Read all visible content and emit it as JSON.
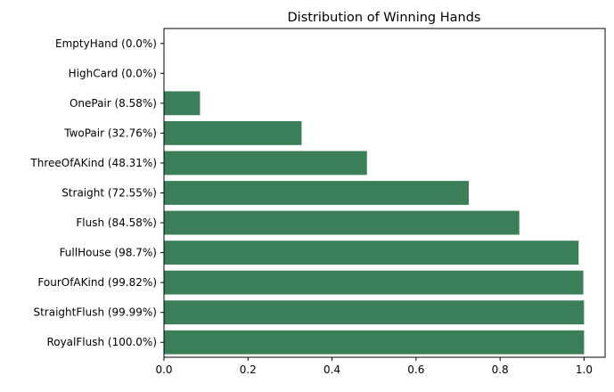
{
  "chart_data": {
    "type": "bar",
    "orientation": "horizontal",
    "title": "Distribution of Winning Hands",
    "xlabel": "",
    "ylabel": "",
    "categories": [
      "EmptyHand (0.0%)",
      "HighCard (0.0%)",
      "OnePair (8.58%)",
      "TwoPair (32.76%)",
      "ThreeOfAKind (48.31%)",
      "Straight (72.55%)",
      "Flush (84.58%)",
      "FullHouse (98.7%)",
      "FourOfAKind (99.82%)",
      "StraightFlush (99.99%)",
      "RoyalFlush (100.0%)"
    ],
    "values": [
      0.0,
      0.0,
      0.0858,
      0.3276,
      0.4831,
      0.7255,
      0.8458,
      0.987,
      0.9982,
      0.9999,
      1.0
    ],
    "xlim": [
      0,
      1.05
    ],
    "xticks": [
      0.0,
      0.2,
      0.4,
      0.6,
      0.8,
      1.0
    ],
    "xtick_labels": [
      "0.0",
      "0.2",
      "0.4",
      "0.6",
      "0.8",
      "1.0"
    ],
    "grid": false,
    "legend": "none",
    "bar_color": "#3a7f57"
  }
}
